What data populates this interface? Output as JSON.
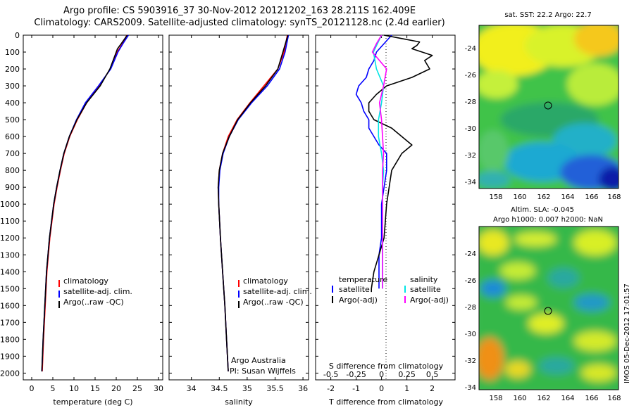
{
  "title_line1": "Argo profile: CS 5903916_37 30-Nov-2012 20121202_163 28.211S 162.409E",
  "title_line2": "Climatology: CARS2009. Satellite-adjusted climatology: synTS_20121128.nc (2.4d earlier)",
  "depth_ticks": [
    0,
    100,
    200,
    300,
    400,
    500,
    600,
    700,
    800,
    900,
    1000,
    1100,
    1200,
    1300,
    1400,
    1500,
    1600,
    1700,
    1800,
    1900,
    2000
  ],
  "colors": {
    "climatology": "#ff0000",
    "satellite": "#0000ff",
    "argo": "#000000",
    "salinity_sat": "#00e5e5",
    "salinity_argo": "#ff00ff"
  },
  "chart_data": [
    {
      "type": "line",
      "xlabel": "temperature (deg C)",
      "xlim": [
        -2,
        31
      ],
      "ylim": [
        2040,
        0
      ],
      "xticks": [
        0,
        5,
        10,
        15,
        20,
        25,
        30
      ],
      "legend": [
        "climatology",
        "satellite-adj. clim.",
        "Argo(..raw -QC)"
      ],
      "series": [
        {
          "name": "climatology",
          "depth": [
            0,
            50,
            100,
            200,
            300,
            400,
            500,
            600,
            700,
            800,
            900,
            1000,
            1200,
            1400,
            1600,
            1800,
            1990
          ],
          "values": [
            22.5,
            21.5,
            20.2,
            18.6,
            16.0,
            13.0,
            10.8,
            9.0,
            7.7,
            6.8,
            6.0,
            5.3,
            4.3,
            3.6,
            3.2,
            2.8,
            2.5
          ]
        },
        {
          "name": "satellite-adj. clim.",
          "depth": [
            0,
            50,
            100,
            200,
            300,
            400,
            500,
            600,
            700,
            800,
            900,
            1000,
            1200,
            1400,
            1600,
            1800,
            1990
          ],
          "values": [
            22.9,
            21.6,
            20.4,
            18.7,
            15.8,
            12.7,
            10.6,
            8.9,
            7.6,
            6.7,
            5.9,
            5.2,
            4.2,
            3.5,
            3.1,
            2.7,
            2.4
          ]
        },
        {
          "name": "Argo(..raw -QC)",
          "depth": [
            0,
            50,
            80,
            100,
            200,
            300,
            400,
            500,
            600,
            700,
            800,
            900,
            1000,
            1200,
            1400,
            1600,
            1800,
            1990
          ],
          "values": [
            22.6,
            21.2,
            20.3,
            20.0,
            18.5,
            16.2,
            13.0,
            10.7,
            8.9,
            7.6,
            6.7,
            5.9,
            5.2,
            4.2,
            3.5,
            3.1,
            2.7,
            2.4
          ]
        }
      ]
    },
    {
      "type": "line",
      "xlabel": "salinity",
      "xlim": [
        33.6,
        36.1
      ],
      "ylim": [
        2040,
        0
      ],
      "xticks": [
        34,
        34.5,
        35,
        35.5,
        36
      ],
      "legend": [
        "climatology",
        "satellite-adj. clim.",
        "Argo(..raw -QC)"
      ],
      "annotation": [
        "Argo Australia",
        "PI: Susan Wijffels"
      ],
      "series": [
        {
          "name": "climatology",
          "depth": [
            0,
            100,
            200,
            300,
            400,
            500,
            600,
            700,
            800,
            900,
            1000,
            1200,
            1400,
            1600,
            1800,
            1990
          ],
          "values": [
            35.72,
            35.66,
            35.55,
            35.3,
            35.05,
            34.82,
            34.66,
            34.56,
            34.5,
            34.48,
            34.49,
            34.52,
            34.56,
            34.6,
            34.63,
            34.66
          ]
        },
        {
          "name": "satellite-adj. clim.",
          "depth": [
            0,
            100,
            200,
            300,
            400,
            500,
            600,
            700,
            800,
            900,
            1000,
            1200,
            1400,
            1600,
            1800,
            1990
          ],
          "values": [
            35.74,
            35.68,
            35.58,
            35.36,
            35.08,
            34.84,
            34.68,
            34.57,
            34.51,
            34.49,
            34.49,
            34.52,
            34.56,
            34.6,
            34.63,
            34.66
          ]
        },
        {
          "name": "Argo(..raw -QC)",
          "depth": [
            0,
            100,
            200,
            300,
            400,
            500,
            600,
            700,
            800,
            900,
            1000,
            1200,
            1400,
            1600,
            1800,
            1990
          ],
          "values": [
            35.73,
            35.64,
            35.55,
            35.33,
            35.06,
            34.83,
            34.68,
            34.56,
            34.5,
            34.48,
            34.49,
            34.52,
            34.56,
            34.6,
            34.63,
            34.66
          ]
        }
      ]
    },
    {
      "type": "line",
      "xlabel": "T difference from climatology",
      "xlabel_top": "S difference from climatology",
      "xlim": [
        -2.6,
        2.9
      ],
      "ylim": [
        2040,
        0
      ],
      "xticks": [
        -2,
        -1,
        0,
        1,
        2
      ],
      "xticks_s": [
        "-0.5",
        "-0.25",
        "0",
        "0.25",
        "0.5"
      ],
      "legend_left_title": "temperature",
      "legend_right_title": "salinity",
      "legend_left": [
        "satellite",
        "Argo(-adj)"
      ],
      "legend_right": [
        "satellite",
        "Argo(-adj)"
      ],
      "series": [
        {
          "name": "temperature satellite",
          "depth": [
            0,
            50,
            100,
            150,
            200,
            250,
            300,
            350,
            400,
            450,
            500,
            550,
            600,
            650,
            700,
            800,
            900,
            1000,
            1100,
            1200,
            1300,
            1400,
            1500
          ],
          "values": [
            0.4,
            0.1,
            -0.2,
            -0.3,
            -0.5,
            -0.6,
            -0.9,
            -1.0,
            -0.8,
            -0.7,
            -0.5,
            -0.5,
            -0.3,
            -0.1,
            0.2,
            0.2,
            0.1,
            0.0,
            0.0,
            0.0,
            -0.1,
            -0.1,
            -0.1
          ]
        },
        {
          "name": "temperature Argo(-adj)",
          "depth": [
            0,
            20,
            40,
            60,
            80,
            100,
            120,
            150,
            200,
            250,
            300,
            350,
            400,
            450,
            500,
            550,
            600,
            650,
            700,
            800,
            900,
            1000,
            1200,
            1300,
            1400,
            1500,
            1520
          ],
          "values": [
            0.1,
            0.8,
            1.5,
            1.4,
            1.2,
            1.6,
            2.0,
            1.7,
            1.9,
            1.2,
            0.2,
            -0.2,
            -0.5,
            -0.5,
            -0.3,
            0.4,
            0.8,
            1.2,
            0.8,
            0.4,
            0.3,
            0.2,
            0.1,
            -0.1,
            -0.3,
            -0.4,
            -0.4
          ]
        },
        {
          "name": "salinity satellite",
          "depth": [
            0,
            100,
            200,
            300,
            400,
            500,
            600,
            700,
            800,
            900,
            1000,
            1200,
            1400,
            1500
          ],
          "values": [
            0.0,
            -0.08,
            -0.05,
            0.02,
            0.0,
            -0.03,
            -0.03,
            0.0,
            0.02,
            0.01,
            0.01,
            0.01,
            0.01,
            0.01
          ]
        },
        {
          "name": "salinity Argo(-adj)",
          "depth": [
            0,
            50,
            100,
            200,
            300,
            400,
            500,
            600,
            700,
            800,
            900,
            1000,
            1200,
            1400,
            1500
          ],
          "values": [
            0.0,
            -0.05,
            -0.09,
            0.05,
            0.02,
            -0.02,
            0.0,
            0.01,
            0.02,
            0.01,
            0.01,
            0.01,
            0.01,
            0.01,
            0.01
          ]
        }
      ]
    }
  ],
  "maps": [
    {
      "title": "sat. SST: 22.2  Argo: 22.7",
      "yticks": [
        "-24",
        "-26",
        "-28",
        "-30",
        "-32",
        "-34"
      ],
      "xticks": [
        "158",
        "160",
        "162",
        "164",
        "166",
        "168"
      ]
    },
    {
      "title_line1": "Altim. SLA: -0.045",
      "title_line2": "Argo h1000: 0.007 h2000: NaN",
      "yticks": [
        "-24",
        "-26",
        "-28",
        "-30",
        "-32",
        "-34"
      ],
      "xticks": [
        "158",
        "160",
        "162",
        "164",
        "166",
        "168"
      ]
    }
  ],
  "side_text": "IMOS 05-Dec-2012 17:01:57"
}
